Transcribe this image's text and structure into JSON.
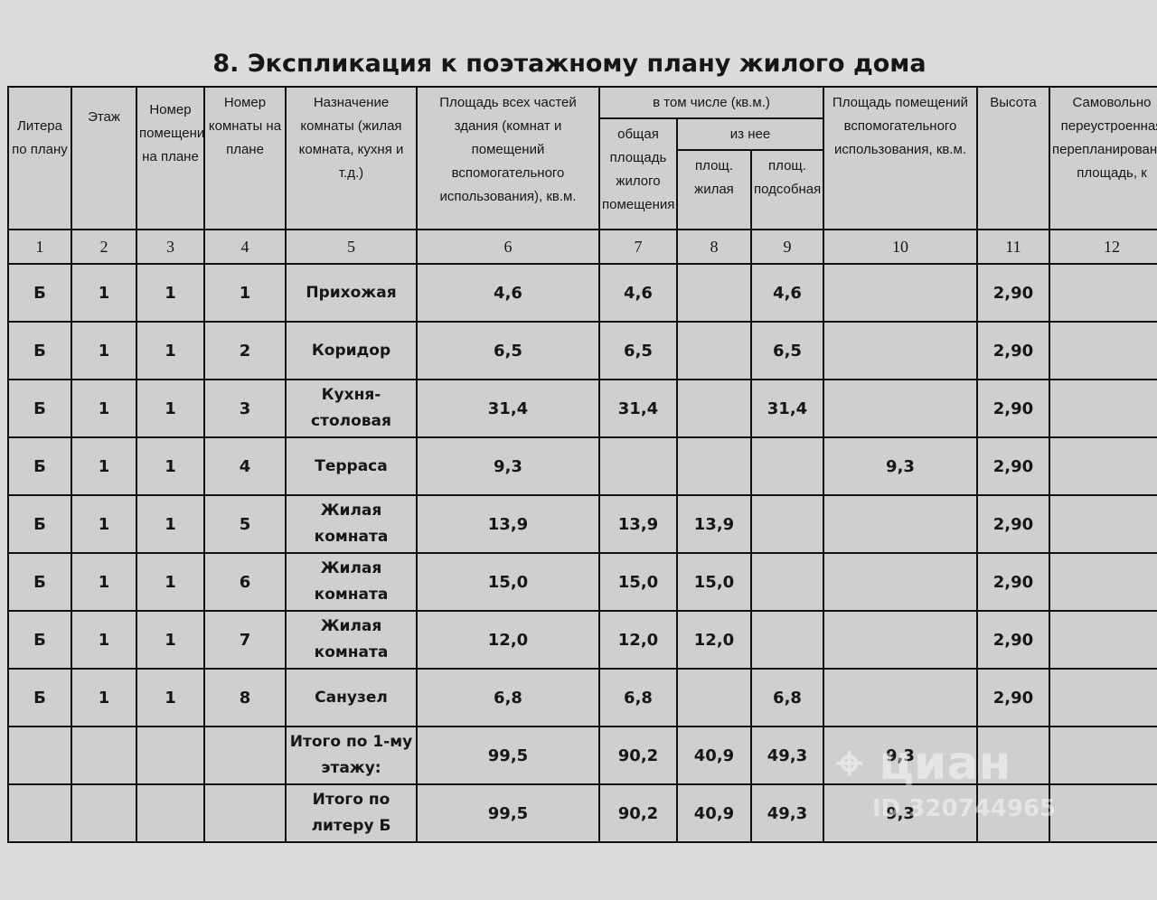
{
  "title": "8. Экспликация к поэтажному плану жилого дома",
  "headers": {
    "c1": "Литера по плану",
    "c2": "Этаж",
    "c3": "Номер помещения на плане",
    "c4": "Номер комнаты на плане",
    "c5": "Назначение комнаты (жилая комната, кухня и т.д.)",
    "c6": "Площадь всех частей здания (комнат и помещений вспомогательного использования), кв.м.",
    "group": "в том числе (кв.м.)",
    "c7": "общая площадь жилого помещения",
    "sub": "из нее",
    "c8": "площ. жилая",
    "c9": "площ. подсобная",
    "c10": "Площадь помещений вспомогательного использования, кв.м.",
    "c11": "Высота",
    "c12": "Самовольно переустроенная перепланированная площадь, к"
  },
  "column_numbers": [
    "1",
    "2",
    "3",
    "4",
    "5",
    "6",
    "7",
    "8",
    "9",
    "10",
    "11",
    "12"
  ],
  "rows": [
    [
      "Б",
      "1",
      "1",
      "1",
      "Прихожая",
      "4,6",
      "4,6",
      "",
      "4,6",
      "",
      "2,90",
      ""
    ],
    [
      "Б",
      "1",
      "1",
      "2",
      "Коридор",
      "6,5",
      "6,5",
      "",
      "6,5",
      "",
      "2,90",
      ""
    ],
    [
      "Б",
      "1",
      "1",
      "3",
      "Кухня-столовая",
      "31,4",
      "31,4",
      "",
      "31,4",
      "",
      "2,90",
      ""
    ],
    [
      "Б",
      "1",
      "1",
      "4",
      "Терраса",
      "9,3",
      "",
      "",
      "",
      "9,3",
      "2,90",
      ""
    ],
    [
      "Б",
      "1",
      "1",
      "5",
      "Жилая комната",
      "13,9",
      "13,9",
      "13,9",
      "",
      "",
      "2,90",
      ""
    ],
    [
      "Б",
      "1",
      "1",
      "6",
      "Жилая комната",
      "15,0",
      "15,0",
      "15,0",
      "",
      "",
      "2,90",
      ""
    ],
    [
      "Б",
      "1",
      "1",
      "7",
      "Жилая комната",
      "12,0",
      "12,0",
      "12,0",
      "",
      "",
      "2,90",
      ""
    ],
    [
      "Б",
      "1",
      "1",
      "8",
      "Санузел",
      "6,8",
      "6,8",
      "",
      "6,8",
      "",
      "2,90",
      ""
    ],
    [
      "",
      "",
      "",
      "",
      "Итого по 1-му этажу:",
      "99,5",
      "90,2",
      "40,9",
      "49,3",
      "9,3",
      "",
      ""
    ],
    [
      "",
      "",
      "",
      "",
      "Итого по литеру Б",
      "99,5",
      "90,2",
      "40,9",
      "49,3",
      "9,3",
      "",
      ""
    ]
  ],
  "watermark": {
    "brand": "циан",
    "id": "ID 320744965"
  }
}
